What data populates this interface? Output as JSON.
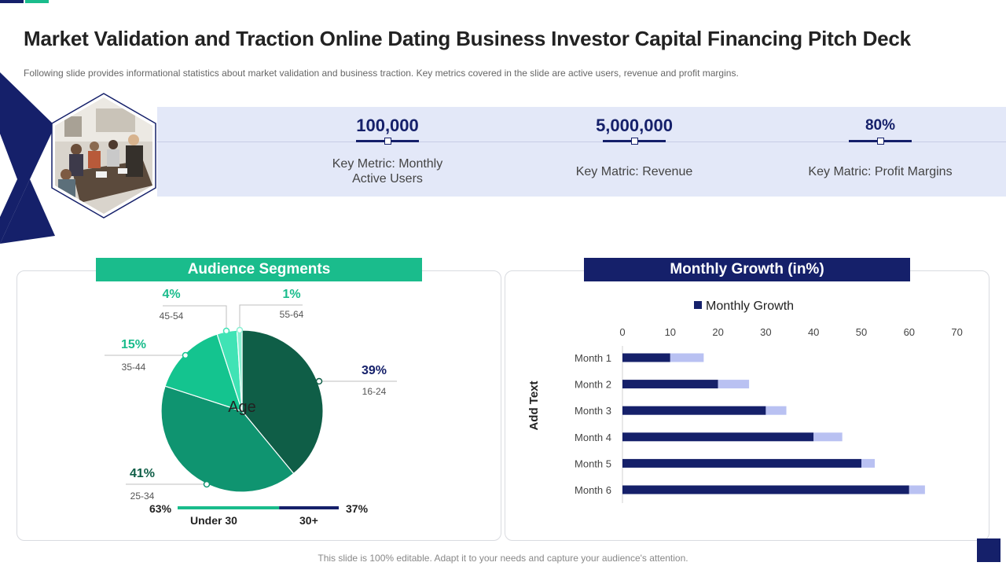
{
  "header": {
    "title": "Market Validation and Traction Online Dating Business Investor Capital Financing Pitch Deck",
    "subtitle": "Following slide provides informational statistics about market validation and business traction. Key metrics covered in the slide are active users, revenue and profit margins."
  },
  "metrics": [
    {
      "value": "100,000",
      "label_line1": "Key Metric: Monthly",
      "label_line2": "Active Users"
    },
    {
      "value": "5,000,000",
      "label_line1": "Key Matric: Revenue",
      "label_line2": ""
    },
    {
      "value": "80%",
      "label_line1": "Key Matric: Profit Margins",
      "label_line2": ""
    }
  ],
  "audience": {
    "title": "Audience Segments",
    "center_label": "Age",
    "split": {
      "under30_pct": "63%",
      "over30_pct": "37%",
      "under30_label": "Under 30",
      "over30_label": "30+",
      "under30_value": 63,
      "over30_value": 37
    }
  },
  "growth": {
    "title": "Monthly Growth (in%)"
  },
  "footer": {
    "note": "This slide is 100% editable. Adapt it to your needs and capture your audience's attention."
  },
  "colors": {
    "navy": "#15206a",
    "green": "#1abc8c",
    "band": "#e3e8f8",
    "light_bar": "#b9c1f2"
  },
  "chart_data": [
    {
      "type": "pie",
      "title": "Audience Segments",
      "center_label": "Age",
      "slices": [
        {
          "label": "16-24",
          "value": 39,
          "pct_label": "39%",
          "color": "#0f5e47"
        },
        {
          "label": "25-34",
          "value": 41,
          "pct_label": "41%",
          "color": "#0f9470"
        },
        {
          "label": "35-44",
          "value": 15,
          "pct_label": "15%",
          "color": "#14c48f"
        },
        {
          "label": "45-54",
          "value": 4,
          "pct_label": "4%",
          "color": "#40e3b5"
        },
        {
          "label": "55-64",
          "value": 1,
          "pct_label": "1%",
          "color": "#8af0d2"
        }
      ]
    },
    {
      "type": "bar",
      "orientation": "horizontal",
      "stacked": true,
      "title": "Monthly Growth",
      "legend": "Monthly Growth",
      "ylabel": "Add Text",
      "xlim": [
        0,
        70
      ],
      "xticks": [
        0,
        10,
        20,
        30,
        40,
        50,
        60,
        70
      ],
      "categories": [
        "Month 1",
        "Month 2",
        "Month 3",
        "Month 4",
        "Month 5",
        "Month 6"
      ],
      "series": [
        {
          "name": "Monthly Growth",
          "values": [
            10,
            20,
            30,
            40,
            50,
            60
          ],
          "color": "#15206a"
        },
        {
          "name": "",
          "values": [
            7,
            6.5,
            4.3,
            6,
            2.8,
            3.3
          ],
          "color": "#b9c1f2"
        }
      ]
    }
  ]
}
